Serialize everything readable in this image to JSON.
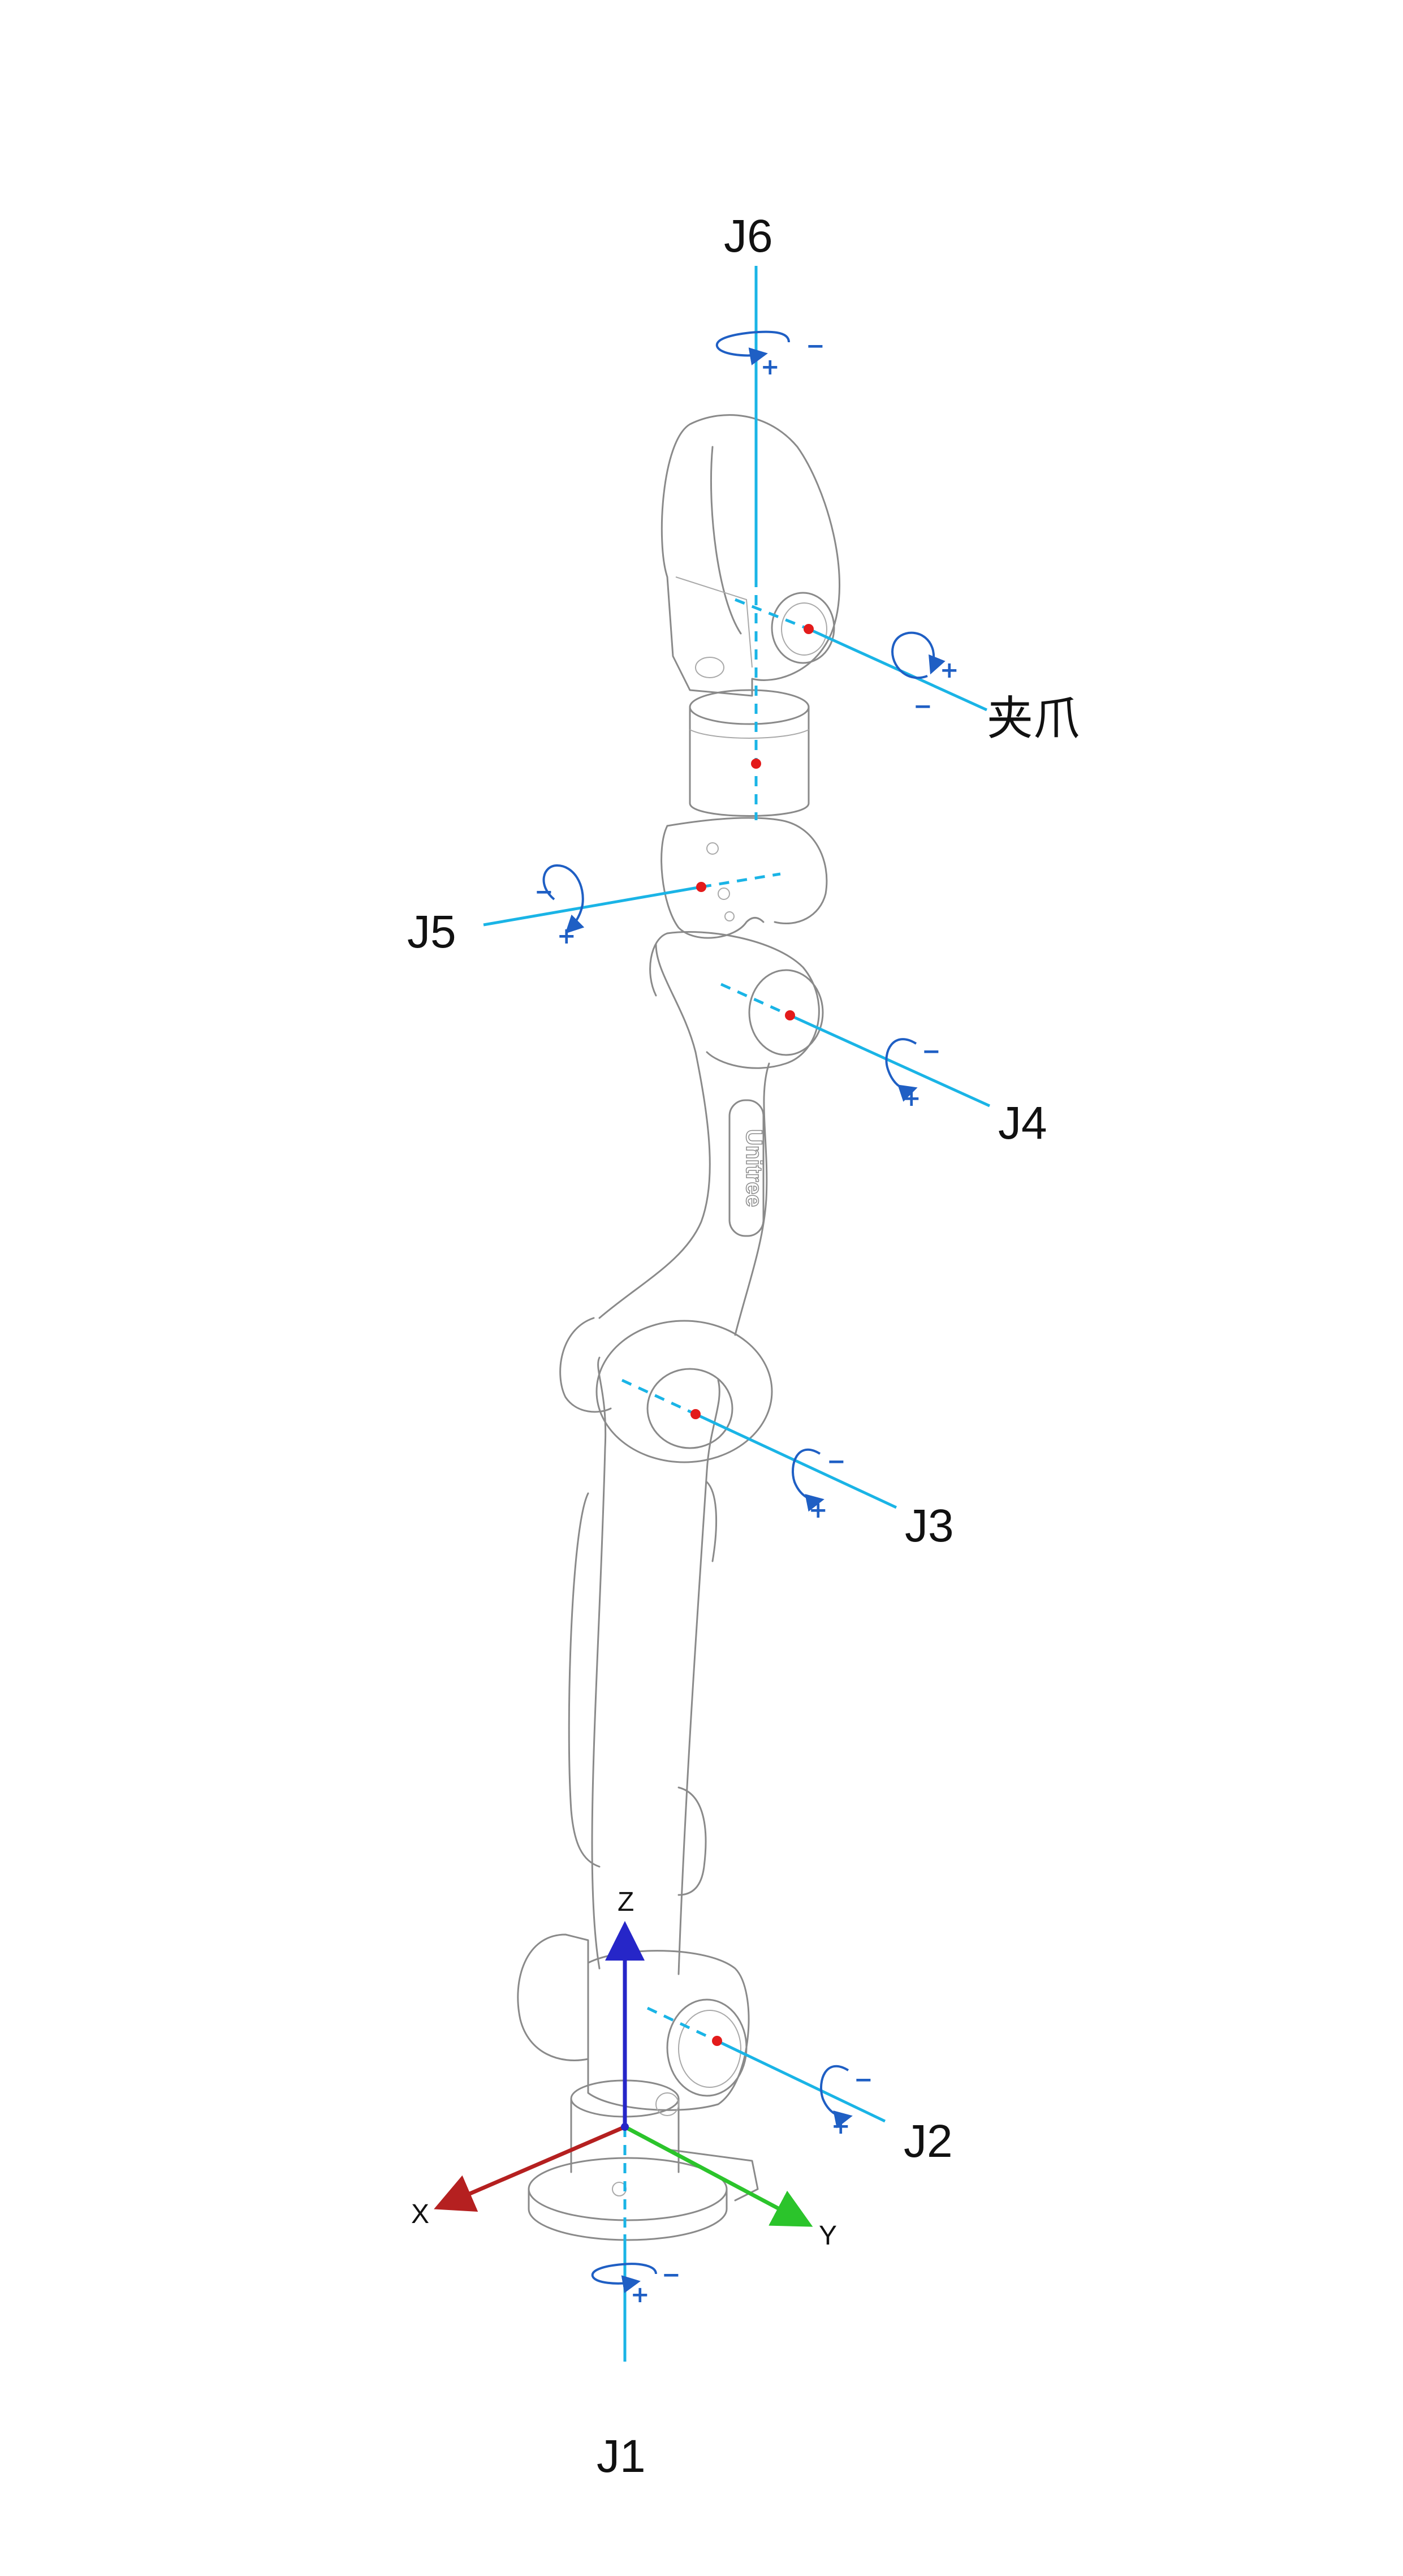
{
  "colors": {
    "axis_line": "#1ab4e6",
    "rotation_arrow": "#1f5fc4",
    "joint_center": "#e31b1b",
    "x_axis": "#b52020",
    "y_axis": "#2bc42b",
    "z_axis": "#2626c8",
    "robot_outline": "#8a8a8a"
  },
  "joints": {
    "j1": {
      "label": "J1",
      "positive": "+",
      "negative": "−"
    },
    "j2": {
      "label": "J2",
      "positive": "+",
      "negative": "−"
    },
    "j3": {
      "label": "J3",
      "positive": "+",
      "negative": "−"
    },
    "j4": {
      "label": "J4",
      "positive": "+",
      "negative": "−"
    },
    "j5": {
      "label": "J5",
      "positive": "+",
      "negative": "−"
    },
    "j6": {
      "label": "J6",
      "positive": "+",
      "negative": "−"
    },
    "gripper": {
      "label": "夹爪",
      "positive": "+",
      "negative": "−"
    }
  },
  "coordinate_frame": {
    "x_label": "X",
    "y_label": "Y",
    "z_label": "Z"
  },
  "arm_logo": "Unitree"
}
